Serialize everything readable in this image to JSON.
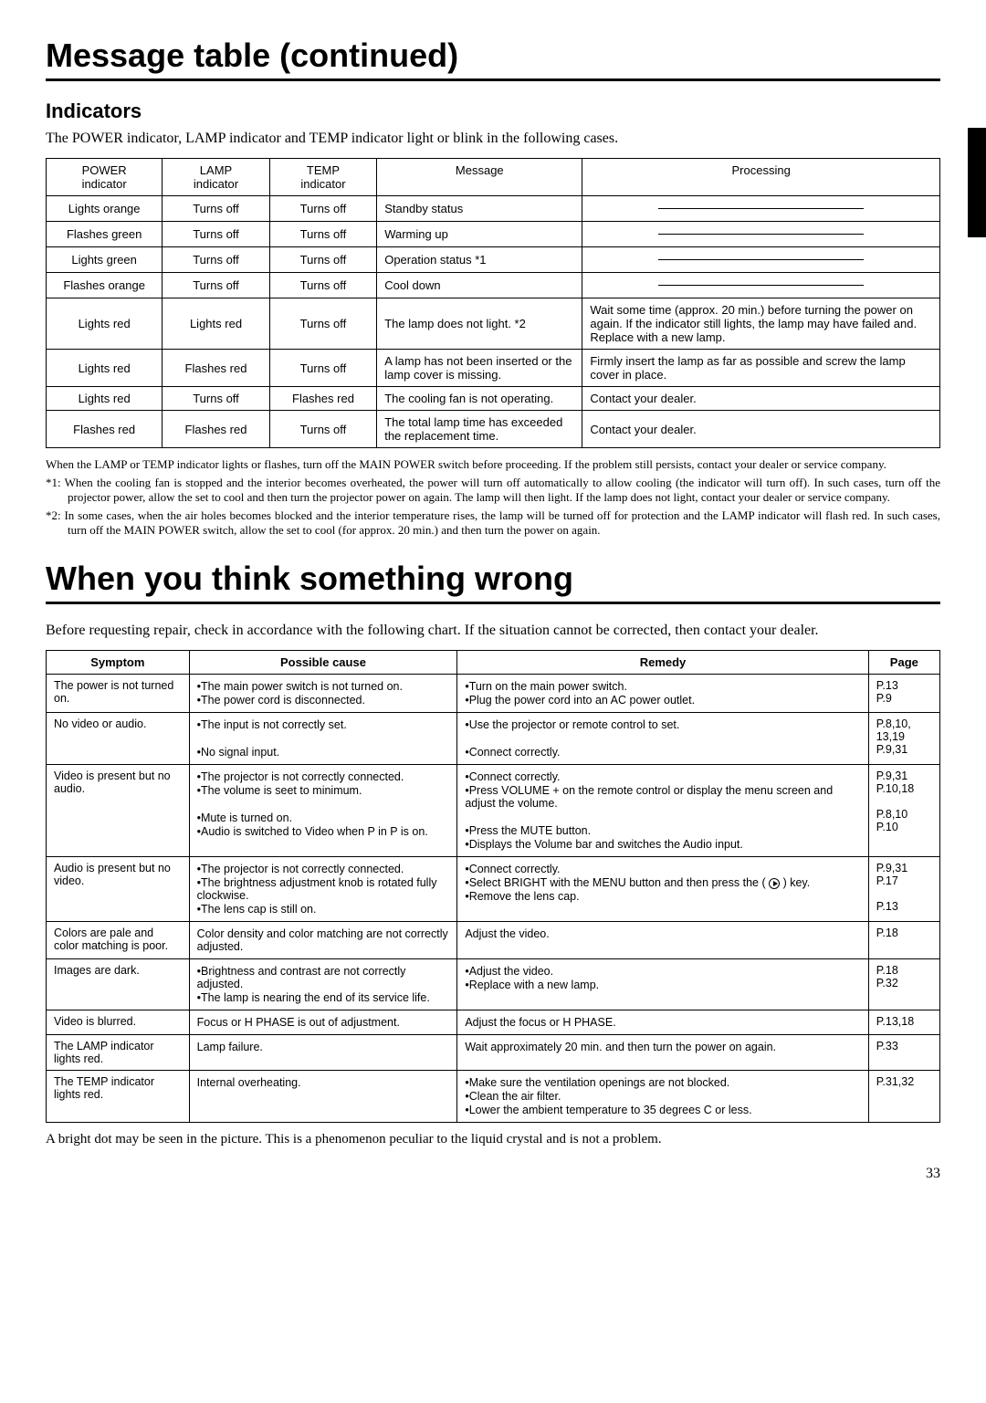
{
  "title1": "Message table (continued)",
  "section_indicators": "Indicators",
  "intro_text": "The POWER indicator, LAMP indicator and TEMP indicator light or blink in the following cases.",
  "indicator_headers": {
    "power": "POWER\nindicator",
    "lamp": "LAMP\nindicator",
    "temp": "TEMP\nindicator",
    "message": "Message",
    "processing": "Processing"
  },
  "indicator_rows": [
    {
      "power": "Lights orange",
      "lamp": "Turns off",
      "temp": "Turns off",
      "message": "Standby status",
      "processing": "dash"
    },
    {
      "power": "Flashes green",
      "lamp": "Turns off",
      "temp": "Turns off",
      "message": "Warming up",
      "processing": "dash"
    },
    {
      "power": "Lights green",
      "lamp": "Turns off",
      "temp": "Turns off",
      "message": "Operation status *1",
      "processing": "dash"
    },
    {
      "power": "Flashes orange",
      "lamp": "Turns off",
      "temp": "Turns off",
      "message": "Cool down",
      "processing": "dash"
    },
    {
      "power": "Lights red",
      "lamp": "Lights red",
      "temp": "Turns off",
      "message": "The lamp does not light. *2",
      "processing": "Wait some time (approx. 20 min.) before turning the power on again. If the indicator still lights, the lamp may have failed and. Replace with a new lamp."
    },
    {
      "power": "Lights red",
      "lamp": "Flashes red",
      "temp": "Turns off",
      "message": "A lamp has not been inserted or the lamp cover is missing.",
      "processing": "Firmly insert the lamp as far as possible and screw the lamp cover in place."
    },
    {
      "power": "Lights red",
      "lamp": "Turns off",
      "temp": "Flashes red",
      "message": "The cooling fan is not operating.",
      "processing": "Contact your dealer."
    },
    {
      "power": "Flashes red",
      "lamp": "Flashes red",
      "temp": "Turns off",
      "message": "The total lamp time has exceeded the replacement time.",
      "processing": "Contact your dealer."
    }
  ],
  "notes": {
    "n0": "When the LAMP or TEMP indicator lights or flashes, turn off the MAIN POWER switch before proceeding. If the problem still persists, contact your dealer or service company.",
    "n1": "*1: When the cooling fan is stopped and the interior becomes overheated, the power will turn off automatically to allow cooling (the indicator will turn off). In such cases, turn off the projector power, allow the set to cool and then turn the projector power on again. The lamp will then light. If the lamp does not light, contact your dealer or service company.",
    "n2": "*2: In some cases, when the air holes becomes blocked and the interior temperature rises, the lamp will be turned off for protection and the LAMP indicator will flash red. In such cases, turn off the MAIN POWER switch, allow the set to cool (for approx. 20 min.) and then turn the power on again."
  },
  "title2": "When you think something wrong",
  "intro2": "Before requesting repair, check in accordance with the following chart. If the situation cannot be corrected, then contact your dealer.",
  "trouble_headers": {
    "symptom": "Symptom",
    "cause": "Possible cause",
    "remedy": "Remedy",
    "page": "Page"
  },
  "trouble_rows": [
    {
      "symptom": "The power is not turned on.",
      "causes": [
        "•The main power switch is not turned on.",
        "•The power cord is disconnected."
      ],
      "remedies": [
        "•Turn on the main power switch.",
        "•Plug the power cord into an AC power outlet."
      ],
      "pages": [
        "P.13",
        "P.9"
      ]
    },
    {
      "symptom": "No video or audio.",
      "causes": [
        "•The input is not correctly set.",
        "",
        "•No signal input."
      ],
      "remedies": [
        "•Use the projector or remote control to set.",
        "",
        "•Connect correctly."
      ],
      "pages": [
        "P.8,10,",
        "13,19",
        "P.9,31"
      ]
    },
    {
      "symptom": "Video is present but no audio.",
      "causes": [
        "•The projector is not correctly connected.",
        "•The volume is seet to minimum.",
        "",
        "•Mute is turned on.",
        "•Audio is switched to Video when P in P is on."
      ],
      "remedies": [
        "•Connect correctly.",
        "•Press VOLUME + on the remote control or display the menu screen and adjust the volume.",
        "",
        "•Press the MUTE button.",
        "•Displays the Volume bar and switches the Audio input."
      ],
      "pages": [
        "P.9,31",
        "P.10,18",
        "",
        "P.8,10",
        "P.10"
      ]
    },
    {
      "symptom": "Audio is present but no video.",
      "causes": [
        "•The projector is not correctly connected.",
        "•The brightness adjustment knob is rotated fully clockwise.",
        "•The lens cap is still on."
      ],
      "remedies": [
        "•Connect correctly.",
        "•Select BRIGHT with the MENU button and then press the ( ▶ ) key.",
        "•Remove the lens cap."
      ],
      "pages": [
        "P.9,31",
        "P.17",
        "",
        "P.13"
      ]
    },
    {
      "symptom": "Colors are pale and color matching is poor.",
      "causes": [
        "Color density and color matching are not correctly adjusted."
      ],
      "remedies": [
        "Adjust the video."
      ],
      "pages": [
        "P.18"
      ]
    },
    {
      "symptom": "Images are dark.",
      "causes": [
        "•Brightness and contrast are not correctly adjusted.",
        "•The lamp is nearing the end of its service life."
      ],
      "remedies": [
        "•Adjust the video.",
        "•Replace with a new lamp."
      ],
      "pages": [
        "P.18",
        "P.32"
      ]
    },
    {
      "symptom": "Video is blurred.",
      "causes": [
        "Focus or H PHASE is out of adjustment."
      ],
      "remedies": [
        "Adjust the focus or H PHASE."
      ],
      "pages": [
        "P.13,18"
      ]
    },
    {
      "symptom": "The LAMP indicator lights red.",
      "causes": [
        "Lamp failure."
      ],
      "remedies": [
        "Wait approximately 20 min. and then turn the power on again."
      ],
      "pages": [
        "P.33"
      ]
    },
    {
      "symptom": "The TEMP indicator lights red.",
      "causes": [
        "Internal overheating."
      ],
      "remedies": [
        "•Make sure the ventilation openings are not blocked.",
        "•Clean the air filter.",
        "•Lower the ambient temperature to 35 degrees C or less."
      ],
      "pages": [
        "P.31,32"
      ]
    }
  ],
  "bottom_note": "A bright dot may be seen in the picture.  This is a phenomenon peculiar to the liquid crystal and is not a problem.",
  "page_number": "33"
}
